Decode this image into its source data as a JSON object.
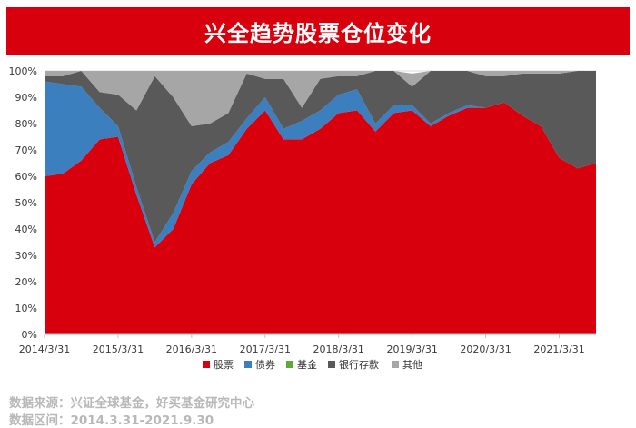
{
  "title": "兴全趋势股票仓位变化",
  "footer": {
    "source": "数据来源：兴证全球基金，好买基金研究中心",
    "range": "数据区间：2014.3.31-2021.9.30"
  },
  "chart_data": {
    "type": "area",
    "stacked": true,
    "x": [
      "2014/3/31",
      "2014/6/30",
      "2014/9/30",
      "2014/12/31",
      "2015/3/31",
      "2015/6/30",
      "2015/9/30",
      "2015/12/31",
      "2016/3/31",
      "2016/6/30",
      "2016/9/30",
      "2016/12/31",
      "2017/3/31",
      "2017/6/30",
      "2017/9/30",
      "2017/12/31",
      "2018/3/31",
      "2018/6/30",
      "2018/9/30",
      "2018/12/31",
      "2019/3/31",
      "2019/6/30",
      "2019/9/30",
      "2019/12/31",
      "2020/3/31",
      "2020/6/30",
      "2020/9/30",
      "2020/12/31",
      "2021/3/31",
      "2021/6/30",
      "2021/9/30"
    ],
    "tick_labels": [
      "2014/3/31",
      "2015/3/31",
      "2016/3/31",
      "2017/3/31",
      "2018/3/31",
      "2019/3/31",
      "2020/3/31",
      "2021/3/31"
    ],
    "ylim": [
      0,
      100
    ],
    "yticks": [
      "0%",
      "10%",
      "20%",
      "30%",
      "40%",
      "50%",
      "60%",
      "70%",
      "80%",
      "90%",
      "100%"
    ],
    "legend_position": "bottom",
    "series": [
      {
        "name": "股票",
        "color": "#d9000d",
        "values": [
          60,
          61,
          66,
          74,
          75,
          53,
          33,
          40,
          57,
          65,
          68,
          78,
          85,
          74,
          74,
          78,
          84,
          85,
          77,
          84,
          85,
          79,
          83,
          86,
          86,
          88,
          83,
          79,
          67,
          63,
          65
        ]
      },
      {
        "name": "债券",
        "color": "#3b7fbf",
        "values": [
          36,
          34,
          28,
          12,
          4,
          3,
          2,
          6,
          5,
          4,
          5,
          4,
          5,
          4,
          7,
          7,
          7,
          8,
          3,
          3,
          2,
          1,
          1,
          1,
          0,
          0,
          0,
          0,
          0,
          0,
          0
        ]
      },
      {
        "name": "基金",
        "color": "#5cab3a",
        "values": [
          0,
          0,
          0,
          0,
          0,
          0,
          0,
          0,
          0,
          0,
          0,
          0,
          0,
          0,
          0,
          0,
          0,
          0,
          0,
          0,
          0,
          0,
          0,
          0,
          0,
          0,
          0,
          0,
          0,
          0,
          0
        ]
      },
      {
        "name": "银行存款",
        "color": "#595959",
        "values": [
          2,
          3,
          6,
          6,
          12,
          29,
          63,
          44,
          17,
          11,
          11,
          17,
          7,
          19,
          5,
          12,
          7,
          5,
          20,
          13,
          7,
          20,
          16,
          13,
          12,
          10,
          16,
          20,
          32,
          37,
          35
        ]
      },
      {
        "name": "其他",
        "color": "#a6a6a6",
        "values": [
          2,
          2,
          0,
          8,
          9,
          15,
          2,
          10,
          21,
          20,
          16,
          1,
          3,
          3,
          14,
          3,
          2,
          2,
          0,
          0,
          5,
          0,
          0,
          0,
          2,
          2,
          1,
          1,
          1,
          0,
          0
        ]
      }
    ]
  }
}
